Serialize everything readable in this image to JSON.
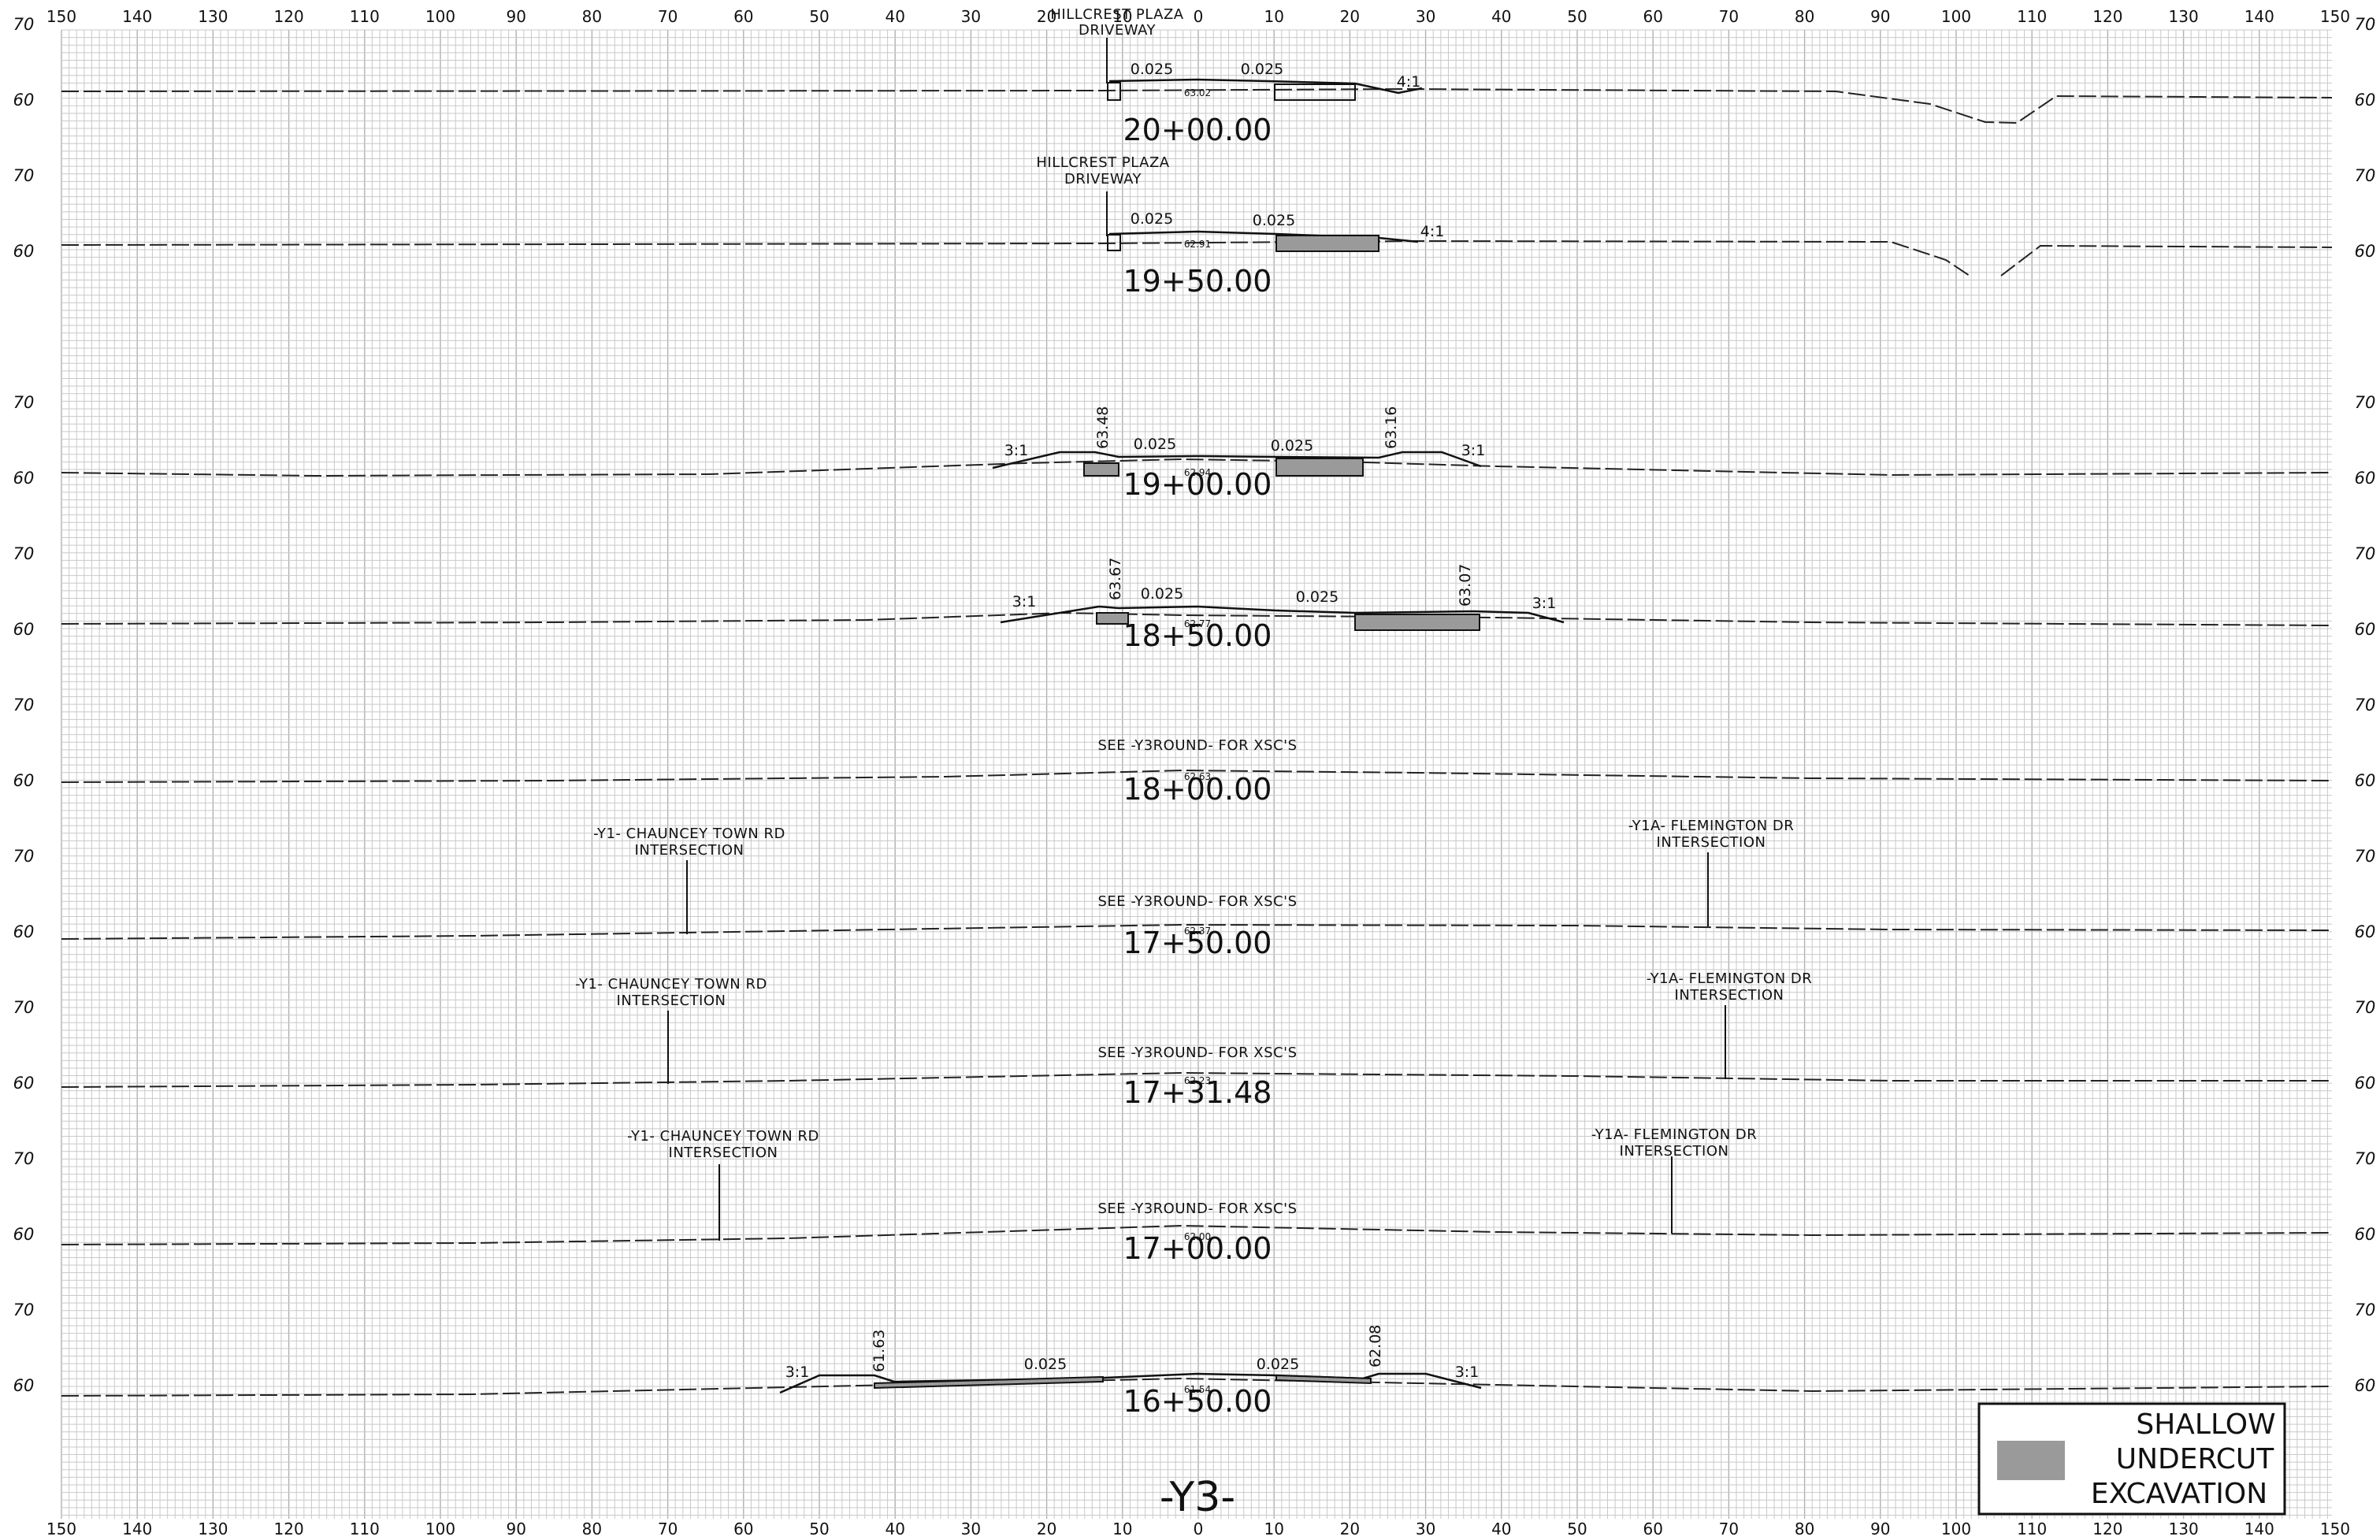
{
  "sheet": {
    "title": "-Y3-",
    "offset_ticks": [
      "150",
      "140",
      "130",
      "120",
      "110",
      "100",
      "90",
      "80",
      "70",
      "60",
      "50",
      "40",
      "30",
      "20",
      "10",
      "0",
      "10",
      "20",
      "30",
      "40",
      "50",
      "60",
      "70",
      "80",
      "90",
      "100",
      "110",
      "120",
      "130",
      "140",
      "150"
    ],
    "elevation_labels": {
      "upper": "70",
      "lower": "60"
    }
  },
  "legend": {
    "lines": [
      "SHALLOW",
      "UNDERCUT",
      "EXCAVATION"
    ],
    "swatch_color": "#9a9a9a"
  },
  "colors": {
    "grid": "#c9c9c9",
    "grid_major": "#b0b0b0",
    "ink": "#111111"
  },
  "sections": [
    {
      "station": "20+00.00",
      "callout": {
        "line1": "HILLCREST PLAZA",
        "line2": "DRIVEWAY"
      },
      "slopes": [
        "0.025",
        "0.025"
      ],
      "side_slope_right": "4:1",
      "centerline_elev": "63.02"
    },
    {
      "station": "19+50.00",
      "callout": {
        "line1": "HILLCREST PLAZA",
        "line2": "DRIVEWAY"
      },
      "slopes": [
        "0.025",
        "0.025"
      ],
      "side_slope_right": "4:1",
      "centerline_elev": "62.91"
    },
    {
      "station": "19+00.00",
      "slopes": [
        "0.025",
        "0.025"
      ],
      "side_slope_left": "3:1",
      "side_slope_right": "3:1",
      "left_elev": "63.48",
      "right_elev": "63.16",
      "centerline_elev": "62.94"
    },
    {
      "station": "18+50.00",
      "slopes": [
        "0.025",
        "0.025"
      ],
      "side_slope_left": "3:1",
      "side_slope_right": "3:1",
      "left_elev": "63.67",
      "right_elev": "63.07",
      "centerline_elev": "62.77"
    },
    {
      "station": "18+00.00",
      "note": "SEE -Y3ROUND- FOR XSC'S",
      "centerline_elev": "62.63"
    },
    {
      "station": "17+50.00",
      "note": "SEE -Y3ROUND- FOR XSC'S",
      "left_callout": {
        "line1": "-Y1- CHAUNCEY TOWN RD",
        "line2": "INTERSECTION"
      },
      "right_callout": {
        "line1": "-Y1A- FLEMINGTON DR",
        "line2": "INTERSECTION"
      },
      "centerline_elev": "62.37"
    },
    {
      "station": "17+31.48",
      "note": "SEE -Y3ROUND- FOR XSC'S",
      "left_callout": {
        "line1": "-Y1- CHAUNCEY TOWN RD",
        "line2": "INTERSECTION"
      },
      "right_callout": {
        "line1": "-Y1A- FLEMINGTON DR",
        "line2": "INTERSECTION"
      },
      "centerline_elev": "62.23"
    },
    {
      "station": "17+00.00",
      "note": "SEE -Y3ROUND- FOR XSC'S",
      "left_callout": {
        "line1": "-Y1- CHAUNCEY TOWN RD",
        "line2": "INTERSECTION"
      },
      "right_callout": {
        "line1": "-Y1A- FLEMINGTON DR",
        "line2": "INTERSECTION"
      },
      "centerline_elev": "62.00"
    },
    {
      "station": "16+50.00",
      "slopes": [
        "0.025",
        "0.025"
      ],
      "side_slope_left": "3:1",
      "side_slope_right": "3:1",
      "left_elev": "61.63",
      "right_elev": "62.08",
      "centerline_elev": "61.54"
    }
  ]
}
